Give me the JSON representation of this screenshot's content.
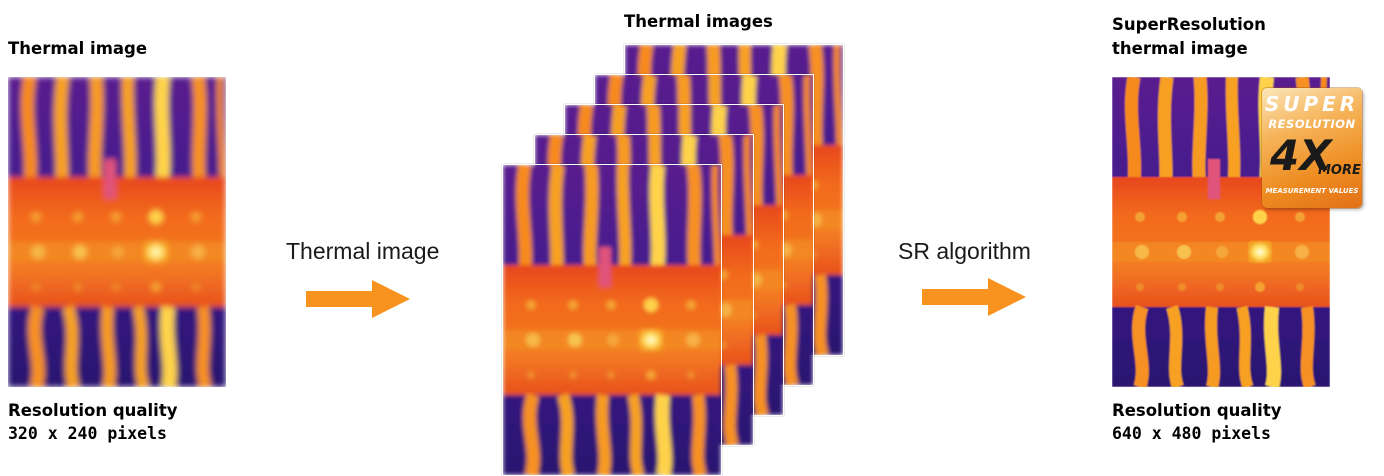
{
  "left": {
    "title": "Thermal image",
    "caption_line1": "Resolution quality",
    "caption_line2": "320 x 240 pixels"
  },
  "step1": {
    "label": "Thermal image"
  },
  "middle": {
    "title": "Thermal images",
    "frame_count": 5
  },
  "step2": {
    "label": "SR algorithm"
  },
  "right": {
    "title_line1": "SuperResolution",
    "title_line2": "thermal image",
    "caption_line1": "Resolution quality",
    "caption_line2": "640 x 480 pixels"
  },
  "badge": {
    "line1": "SUPER",
    "line2": "RESOLUTION",
    "multiplier": "4X",
    "more": "MORE",
    "footer": "MEASUREMENT VALUES"
  },
  "colors": {
    "arrow": "#f7931e",
    "thermal_background": "#3b1a8c",
    "thermal_band": "#f26a1b",
    "thermal_wire": "#f7a020",
    "thermal_hot": "#fff3a0"
  }
}
